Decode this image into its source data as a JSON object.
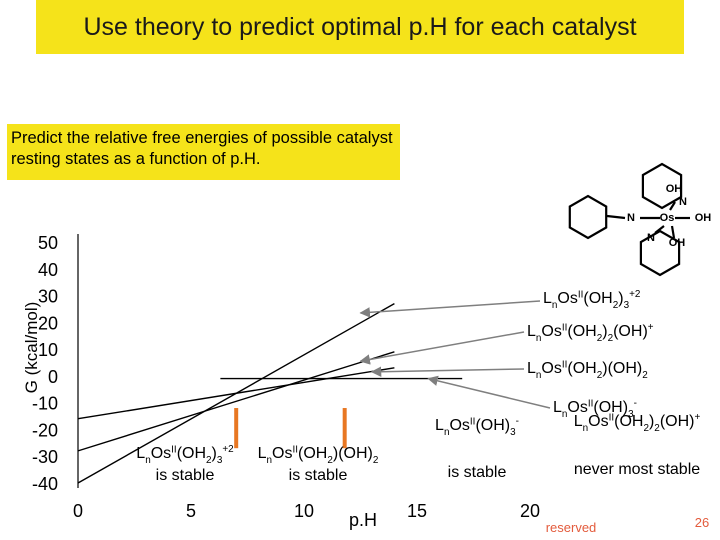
{
  "slide": {
    "title": "Use theory to predict optimal p.H for each catalyst",
    "note": "Predict the relative free energies of possible catalyst resting states as a function of p.H.",
    "footer_text": "reserved",
    "page_number": "26"
  },
  "molecule": {
    "atoms": [
      "OH",
      "N",
      "N",
      "Os",
      "OH",
      "N",
      "OH"
    ]
  },
  "chart_data": {
    "type": "line",
    "xlabel": "p.H",
    "ylabel": "G (kcal/mol)",
    "xlim": [
      0,
      20
    ],
    "ylim": [
      -40,
      50
    ],
    "xticks": [
      0,
      5,
      10,
      15,
      20
    ],
    "yticks": [
      50,
      40,
      30,
      20,
      10,
      0,
      -10,
      -20,
      -30,
      -40
    ],
    "series": [
      {
        "name": "LnOsII(OH2)3+2",
        "points": [
          [
            0,
            -40
          ],
          [
            14,
            27
          ]
        ]
      },
      {
        "name": "LnOsII(OH2)2(OH)+",
        "points": [
          [
            0,
            -28
          ],
          [
            14,
            9
          ]
        ]
      },
      {
        "name": "LnOsII(OH2)(OH)2",
        "points": [
          [
            0,
            -16
          ],
          [
            14,
            3
          ]
        ]
      },
      {
        "name": "LnOsII(OH)3-",
        "points": [
          [
            6.3,
            -1
          ],
          [
            17,
            -1
          ]
        ]
      }
    ],
    "transitions": [
      {
        "x": 7.0,
        "y_top": -12,
        "y_bottom": -27
      },
      {
        "x": 11.8,
        "y_top": -12,
        "y_bottom": -27
      }
    ],
    "annotations": [
      {
        "text": "LnOsII(OH2)3+2",
        "sub": "n",
        "sup": "II",
        "tail": "(OH2)3",
        "charge": "+2",
        "pointer_to": [
          12.5,
          23.5
        ]
      },
      {
        "text": "LnOsII(OH2)2(OH)+",
        "sub": "n",
        "sup": "II",
        "tail": "(OH2)2(OH)",
        "charge": "+",
        "pointer_to": [
          12.5,
          5.5
        ]
      },
      {
        "text": "LnOsII(OH2)(OH)2",
        "sub": "n",
        "sup": "II",
        "tail": "(OH2)(OH)2",
        "charge": "",
        "pointer_to": [
          13,
          1.5
        ]
      },
      {
        "text": "LnOsII(OH)3-",
        "sub": "n",
        "sup": "II",
        "tail": "(OH)3",
        "charge": "-",
        "pointer_to": [
          15.5,
          -1
        ]
      }
    ],
    "region_labels": [
      {
        "formula": "LnOsII(OH2)3+2",
        "caption": "is stable"
      },
      {
        "formula": "LnOsII(OH2)(OH)2",
        "caption": "is stable"
      },
      {
        "formula": "LnOsII(OH)3-",
        "caption": "is stable"
      },
      {
        "formula": "LnOsII(OH2)2(OH)+",
        "caption": "never most stable"
      }
    ],
    "colors": {
      "lines": "#000000",
      "arrows": "#7f7f7f",
      "transitions": "#e87722",
      "title_bg": "#f5e31a"
    }
  }
}
